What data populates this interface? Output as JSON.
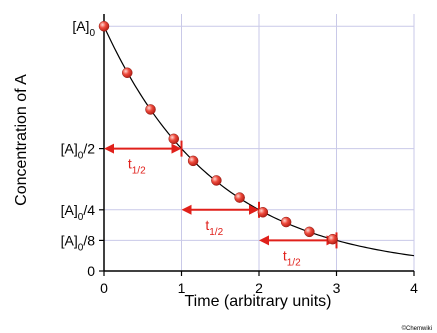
{
  "chart_data": {
    "type": "scatter",
    "xlabel": "Time (arbitrary units)",
    "ylabel": "Concentration of A",
    "xlim": [
      0,
      4
    ],
    "ylim": [
      0,
      1.05
    ],
    "grid": true,
    "x_ticks": [
      "0",
      "1",
      "2",
      "3",
      "4"
    ],
    "y_tick_labels": [
      {
        "base": "[A]",
        "sub": "0",
        "suffix": "",
        "value": 1.0
      },
      {
        "base": "[A]",
        "sub": "0",
        "suffix": "/2",
        "value": 0.5
      },
      {
        "base": "[A]",
        "sub": "0",
        "suffix": "/4",
        "value": 0.25
      },
      {
        "base": "[A]",
        "sub": "0",
        "suffix": "/8",
        "value": 0.125
      },
      {
        "base": "0",
        "sub": "",
        "suffix": "",
        "value": 0
      }
    ],
    "curve": {
      "type": "exponential-decay",
      "half_life": 1.0,
      "x_range": [
        0,
        4
      ]
    },
    "points": [
      {
        "x": 0.0,
        "y": 1.0
      },
      {
        "x": 0.3,
        "y": 0.81
      },
      {
        "x": 0.6,
        "y": 0.66
      },
      {
        "x": 0.9,
        "y": 0.54
      },
      {
        "x": 1.15,
        "y": 0.45
      },
      {
        "x": 1.45,
        "y": 0.37
      },
      {
        "x": 1.75,
        "y": 0.3
      },
      {
        "x": 2.05,
        "y": 0.24
      },
      {
        "x": 2.35,
        "y": 0.2
      },
      {
        "x": 2.65,
        "y": 0.16
      },
      {
        "x": 2.95,
        "y": 0.13
      }
    ],
    "half_life_arrows": [
      {
        "x_start": 0,
        "x_end": 1,
        "y": 0.5,
        "label": "t",
        "label_sub": "1/2"
      },
      {
        "x_start": 1,
        "x_end": 2,
        "y": 0.25,
        "label": "t",
        "label_sub": "1/2"
      },
      {
        "x_start": 2,
        "x_end": 3,
        "y": 0.125,
        "label": "t",
        "label_sub": "1/2"
      }
    ],
    "colors": {
      "points": "#e8362c",
      "arrows": "#e0201b",
      "curve": "#000000",
      "grid": "#c9c9e8"
    }
  },
  "credit": "©Chemwiki"
}
